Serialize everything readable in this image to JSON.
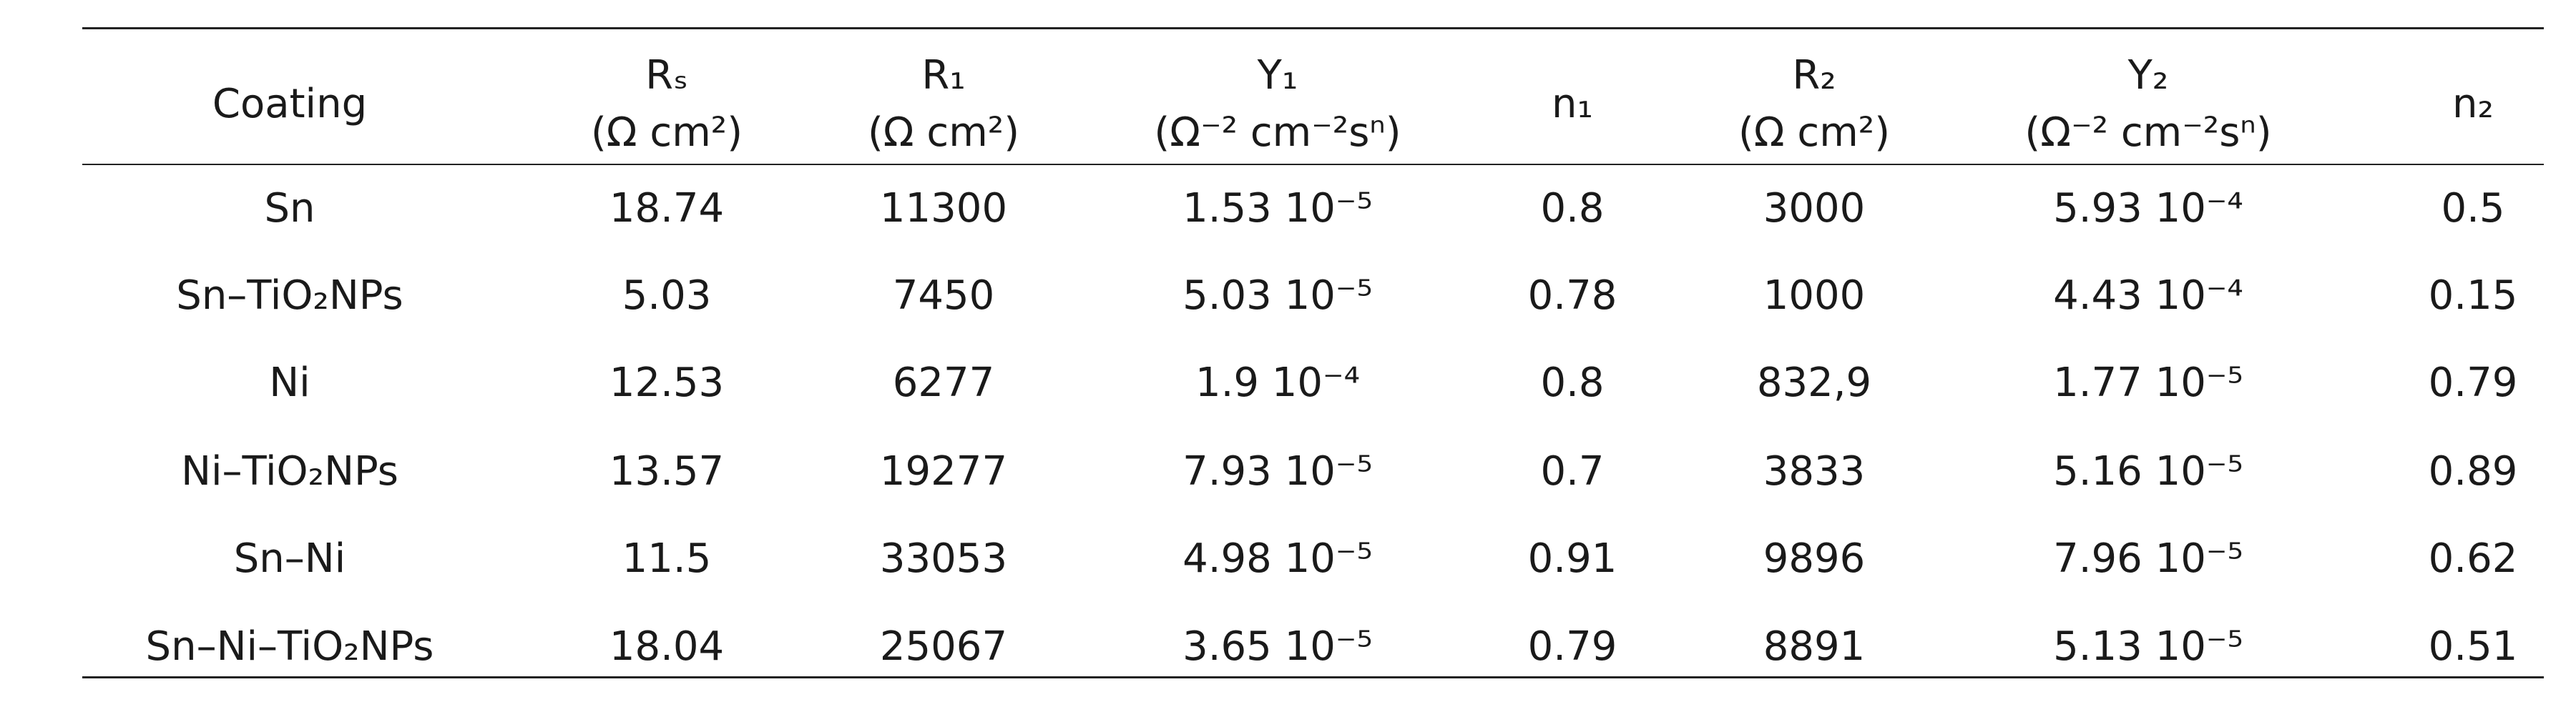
{
  "table": {
    "header": [
      {
        "symbol": "Coating"
      },
      {
        "symbol": "Rₛ",
        "unit": "(Ω cm²)"
      },
      {
        "symbol": "R₁",
        "unit": "(Ω cm²)"
      },
      {
        "symbol": "Y₁",
        "unit": "(Ω⁻² cm⁻²sⁿ)"
      },
      {
        "symbol": "n₁"
      },
      {
        "symbol": "R₂",
        "unit": "(Ω cm²)"
      },
      {
        "symbol": "Y₂",
        "unit": "(Ω⁻² cm⁻²sⁿ)"
      },
      {
        "symbol": "n₂"
      }
    ],
    "rows": [
      [
        "Sn",
        "18.74",
        "11300",
        "1.53 10⁻⁵",
        "0.8",
        "3000",
        "5.93 10⁻⁴",
        "0.5"
      ],
      [
        "Sn–TiO₂NPs",
        "5.03",
        "7450",
        "5.03 10⁻⁵",
        "0.78",
        "1000",
        "4.43 10⁻⁴",
        "0.15"
      ],
      [
        "Ni",
        "12.53",
        "6277",
        "1.9 10⁻⁴",
        "0.8",
        "832,9",
        "1.77 10⁻⁵",
        "0.79"
      ],
      [
        "Ni–TiO₂NPs",
        "13.57",
        "19277",
        "7.93 10⁻⁵",
        "0.7",
        "3833",
        "5.16 10⁻⁵",
        "0.89"
      ],
      [
        "Sn–Ni",
        "11.5",
        "33053",
        "4.98 10⁻⁵",
        "0.91",
        "9896",
        "7.96 10⁻⁵",
        "0.62"
      ],
      [
        "Sn–Ni–TiO₂NPs",
        "18.04",
        "25067",
        "3.65 10⁻⁵",
        "0.79",
        "8891",
        "5.13 10⁻⁵",
        "0.51"
      ]
    ]
  }
}
